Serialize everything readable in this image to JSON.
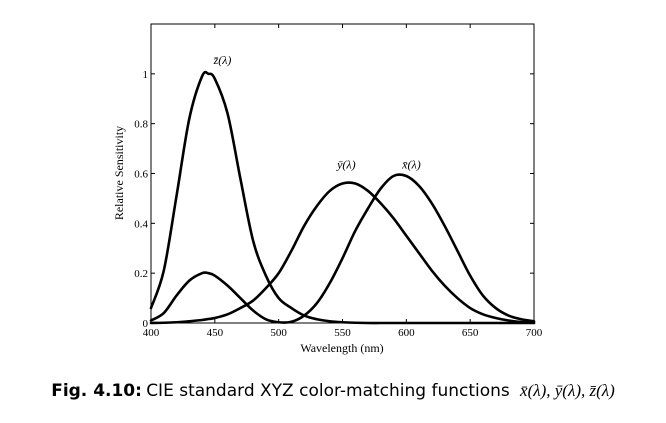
{
  "chart_data": {
    "type": "line",
    "title": "",
    "xlabel": "Wavelength (nm)",
    "ylabel": "Relative Sensitivity",
    "xlim": [
      400,
      700
    ],
    "ylim": [
      0,
      1.2
    ],
    "x_ticks": [
      400,
      450,
      500,
      550,
      600,
      650,
      700
    ],
    "y_ticks": [
      0,
      0.2,
      0.4,
      0.6,
      0.8,
      1
    ],
    "y_tick_labels": [
      "0",
      "0.2",
      "0.4",
      "0.6",
      "0.8",
      "1"
    ],
    "grid": false,
    "x": [
      400,
      410,
      420,
      430,
      440,
      445,
      450,
      460,
      470,
      480,
      490,
      500,
      510,
      520,
      530,
      540,
      550,
      560,
      570,
      580,
      590,
      600,
      610,
      620,
      630,
      640,
      650,
      660,
      670,
      680,
      690,
      700
    ],
    "series": [
      {
        "name": "z̄(λ)",
        "values": [
          0.06,
          0.21,
          0.51,
          0.82,
          0.99,
          1.0,
          0.98,
          0.84,
          0.58,
          0.33,
          0.19,
          0.1,
          0.06,
          0.03,
          0.015,
          0.007,
          0.003,
          0.001,
          0,
          0,
          0,
          0,
          0,
          0,
          0,
          0,
          0,
          0,
          0,
          0,
          0,
          0
        ]
      },
      {
        "name": "ȳ(λ)",
        "values": [
          0.0,
          0.001,
          0.003,
          0.007,
          0.012,
          0.016,
          0.02,
          0.035,
          0.06,
          0.09,
          0.14,
          0.2,
          0.29,
          0.39,
          0.47,
          0.53,
          0.56,
          0.56,
          0.53,
          0.48,
          0.42,
          0.35,
          0.28,
          0.21,
          0.15,
          0.1,
          0.06,
          0.035,
          0.02,
          0.01,
          0.004,
          0.002
        ]
      },
      {
        "name": "x̄(λ)",
        "values": [
          0.01,
          0.04,
          0.11,
          0.17,
          0.2,
          0.2,
          0.19,
          0.15,
          0.1,
          0.05,
          0.015,
          0.003,
          0.005,
          0.03,
          0.08,
          0.16,
          0.26,
          0.37,
          0.46,
          0.54,
          0.59,
          0.59,
          0.55,
          0.48,
          0.39,
          0.29,
          0.19,
          0.11,
          0.06,
          0.03,
          0.015,
          0.007
        ]
      }
    ],
    "curve_labels": [
      {
        "text": "z̄(λ)",
        "x": 456,
        "y": 1.04
      },
      {
        "text": "ȳ(λ)",
        "x": 553,
        "y": 0.62
      },
      {
        "text": "x̄(λ)",
        "x": 604,
        "y": 0.62
      }
    ],
    "line_color": "#000000"
  },
  "caption": {
    "prefix": "Fig. 4.10:",
    "text": "CIE standard XYZ color-matching functions",
    "math": "x̄(λ), ȳ(λ), z̄(λ)"
  }
}
